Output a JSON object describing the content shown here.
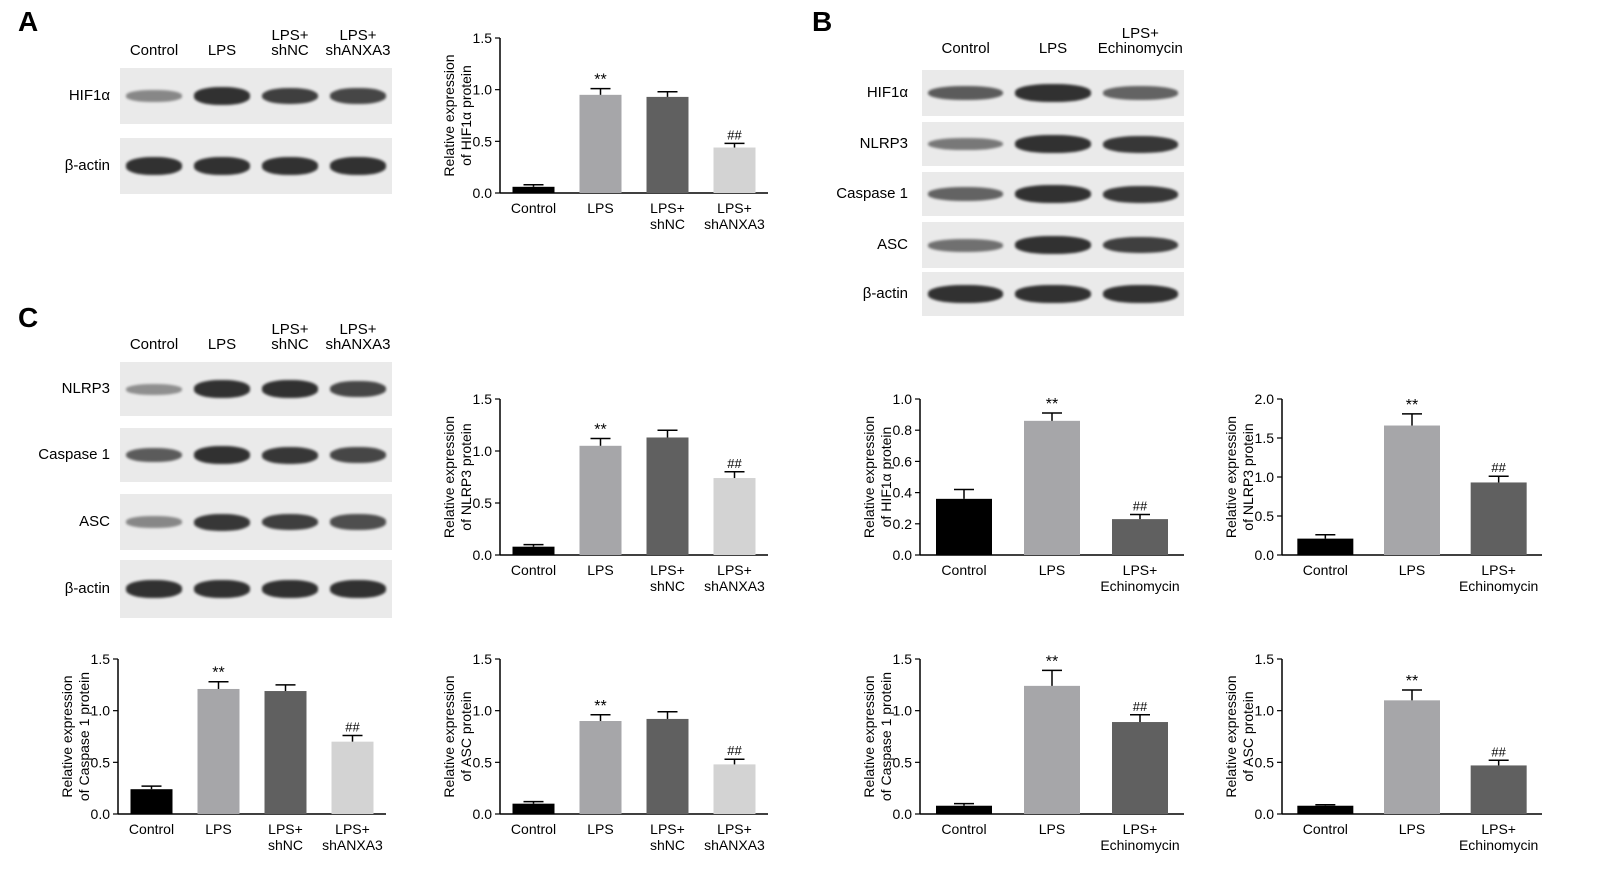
{
  "panels": [
    "A",
    "B",
    "C"
  ],
  "colors": {
    "control": "#000000",
    "lps": "#a6a6a9",
    "shnc": "#606060",
    "shanxa3": "#d3d3d3",
    "echinomycin": "#606060",
    "membrane_bg": "#eaeaea",
    "band": "#2a2a2a"
  },
  "blot_a": {
    "lanes": [
      [
        "Control"
      ],
      [
        "LPS"
      ],
      [
        "LPS+",
        "shNC"
      ],
      [
        "LPS+",
        "shANXA3"
      ]
    ],
    "rows": [
      {
        "label": "HIF1α",
        "intensity": [
          0.35,
          0.95,
          0.85,
          0.8
        ]
      },
      {
        "label": "β-actin",
        "intensity": [
          0.95,
          0.95,
          0.95,
          0.95
        ]
      }
    ]
  },
  "blot_b": {
    "lanes": [
      [
        "Control"
      ],
      [
        "LPS"
      ],
      [
        "LPS+",
        "Echinomycin"
      ]
    ],
    "rows": [
      {
        "label": "HIF1α",
        "intensity": [
          0.65,
          0.95,
          0.6
        ]
      },
      {
        "label": "NLRP3",
        "intensity": [
          0.45,
          0.95,
          0.9
        ]
      },
      {
        "label": "Caspase 1",
        "intensity": [
          0.6,
          0.95,
          0.9
        ]
      },
      {
        "label": "ASC",
        "intensity": [
          0.5,
          0.95,
          0.85
        ]
      },
      {
        "label": "β-actin",
        "intensity": [
          0.95,
          0.95,
          0.95
        ]
      }
    ]
  },
  "blot_c": {
    "lanes": [
      [
        "Control"
      ],
      [
        "LPS"
      ],
      [
        "LPS+",
        "shNC"
      ],
      [
        "LPS+",
        "shANXA3"
      ]
    ],
    "rows": [
      {
        "label": "NLRP3",
        "intensity": [
          0.3,
          0.95,
          0.95,
          0.8
        ]
      },
      {
        "label": "Caspase 1",
        "intensity": [
          0.65,
          0.95,
          0.9,
          0.8
        ]
      },
      {
        "label": "ASC",
        "intensity": [
          0.35,
          0.9,
          0.85,
          0.75
        ]
      },
      {
        "label": "β-actin",
        "intensity": [
          0.95,
          0.95,
          0.95,
          0.95
        ]
      }
    ]
  },
  "chart_data": [
    {
      "id": "a-hif1a",
      "type": "bar",
      "ylabel": [
        "Relative expression",
        "of HIF1α protein"
      ],
      "ylim": [
        0,
        1.5
      ],
      "ticks": [
        "0.0",
        "0.5",
        "1.0",
        "1.5"
      ],
      "categories": [
        [
          "Control"
        ],
        [
          "LPS"
        ],
        [
          "LPS+",
          "shNC"
        ],
        [
          "LPS+",
          "shANXA3"
        ]
      ],
      "values": [
        0.06,
        0.95,
        0.93,
        0.44
      ],
      "errors": [
        0.02,
        0.06,
        0.05,
        0.04
      ],
      "annotations": [
        "",
        "**",
        "",
        "##"
      ],
      "colors": [
        "#000000",
        "#a6a6a9",
        "#606060",
        "#d3d3d3"
      ]
    },
    {
      "id": "c-nlrp3",
      "type": "bar",
      "ylabel": [
        "Relative expression",
        "of NLRP3 protein"
      ],
      "ylim": [
        0,
        1.5
      ],
      "ticks": [
        "0.0",
        "0.5",
        "1.0",
        "1.5"
      ],
      "categories": [
        [
          "Control"
        ],
        [
          "LPS"
        ],
        [
          "LPS+",
          "shNC"
        ],
        [
          "LPS+",
          "shANXA3"
        ]
      ],
      "values": [
        0.08,
        1.05,
        1.13,
        0.74
      ],
      "errors": [
        0.02,
        0.07,
        0.07,
        0.06
      ],
      "annotations": [
        "",
        "**",
        "",
        "##"
      ],
      "colors": [
        "#000000",
        "#a6a6a9",
        "#606060",
        "#d3d3d3"
      ]
    },
    {
      "id": "c-caspase1",
      "type": "bar",
      "ylabel": [
        "Relative expression",
        "of Caspase 1 protein"
      ],
      "ylim": [
        0,
        1.5
      ],
      "ticks": [
        "0.0",
        "0.5",
        "1.0",
        "1.5"
      ],
      "categories": [
        [
          "Control"
        ],
        [
          "LPS"
        ],
        [
          "LPS+",
          "shNC"
        ],
        [
          "LPS+",
          "shANXA3"
        ]
      ],
      "values": [
        0.24,
        1.21,
        1.19,
        0.7
      ],
      "errors": [
        0.03,
        0.07,
        0.06,
        0.06
      ],
      "annotations": [
        "",
        "**",
        "",
        "##"
      ],
      "colors": [
        "#000000",
        "#a6a6a9",
        "#606060",
        "#d3d3d3"
      ]
    },
    {
      "id": "c-asc",
      "type": "bar",
      "ylabel": [
        "Relative expression",
        "of ASC protein"
      ],
      "ylim": [
        0,
        1.5
      ],
      "ticks": [
        "0.0",
        "0.5",
        "1.0",
        "1.5"
      ],
      "categories": [
        [
          "Control"
        ],
        [
          "LPS"
        ],
        [
          "LPS+",
          "shNC"
        ],
        [
          "LPS+",
          "shANXA3"
        ]
      ],
      "values": [
        0.1,
        0.9,
        0.92,
        0.48
      ],
      "errors": [
        0.02,
        0.06,
        0.07,
        0.05
      ],
      "annotations": [
        "",
        "**",
        "",
        "##"
      ],
      "colors": [
        "#000000",
        "#a6a6a9",
        "#606060",
        "#d3d3d3"
      ]
    },
    {
      "id": "b-hif1a",
      "type": "bar",
      "ylabel": [
        "Relative expression",
        "of HIF1α protein"
      ],
      "ylim": [
        0,
        1.0
      ],
      "ticks": [
        "0.0",
        "0.2",
        "0.4",
        "0.6",
        "0.8",
        "1.0"
      ],
      "categories": [
        [
          "Control"
        ],
        [
          "LPS"
        ],
        [
          "LPS+",
          "Echinomycin"
        ]
      ],
      "values": [
        0.36,
        0.86,
        0.23
      ],
      "errors": [
        0.06,
        0.05,
        0.03
      ],
      "annotations": [
        "",
        "**",
        "##"
      ],
      "colors": [
        "#000000",
        "#a6a6a9",
        "#606060"
      ]
    },
    {
      "id": "b-nlrp3",
      "type": "bar",
      "ylabel": [
        "Relative expression",
        "of NLRP3 protein"
      ],
      "ylim": [
        0,
        2.0
      ],
      "ticks": [
        "0.0",
        "0.5",
        "1.0",
        "1.5",
        "2.0"
      ],
      "categories": [
        [
          "Control"
        ],
        [
          "LPS"
        ],
        [
          "LPS+",
          "Echinomycin"
        ]
      ],
      "values": [
        0.21,
        1.66,
        0.93
      ],
      "errors": [
        0.05,
        0.15,
        0.08
      ],
      "annotations": [
        "",
        "**",
        "##"
      ],
      "colors": [
        "#000000",
        "#a6a6a9",
        "#606060"
      ]
    },
    {
      "id": "b-caspase1",
      "type": "bar",
      "ylabel": [
        "Relative expression",
        "of Caspase 1 protein"
      ],
      "ylim": [
        0,
        1.5
      ],
      "ticks": [
        "0.0",
        "0.5",
        "1.0",
        "1.5"
      ],
      "categories": [
        [
          "Control"
        ],
        [
          "LPS"
        ],
        [
          "LPS+",
          "Echinomycin"
        ]
      ],
      "values": [
        0.08,
        1.24,
        0.89
      ],
      "errors": [
        0.02,
        0.15,
        0.07
      ],
      "annotations": [
        "",
        "**",
        "##"
      ],
      "colors": [
        "#000000",
        "#a6a6a9",
        "#606060"
      ]
    },
    {
      "id": "b-asc",
      "type": "bar",
      "ylabel": [
        "Relative expression",
        "of ASC protein"
      ],
      "ylim": [
        0,
        1.5
      ],
      "ticks": [
        "0.0",
        "0.5",
        "1.0",
        "1.5"
      ],
      "categories": [
        [
          "Control"
        ],
        [
          "LPS"
        ],
        [
          "LPS+",
          "Echinomycin"
        ]
      ],
      "values": [
        0.08,
        1.1,
        0.47
      ],
      "errors": [
        0.01,
        0.1,
        0.05
      ],
      "annotations": [
        "",
        "**",
        "##"
      ],
      "colors": [
        "#000000",
        "#a6a6a9",
        "#606060"
      ]
    }
  ]
}
